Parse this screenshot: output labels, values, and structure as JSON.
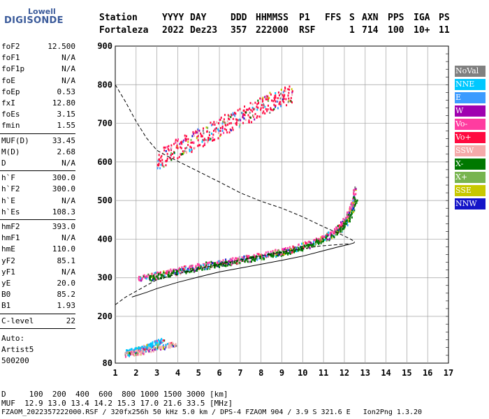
{
  "logo": {
    "line1": "Lowell",
    "line2": "DIGISONDE"
  },
  "header": {
    "row1": [
      "Station",
      "YYYY",
      "DAY",
      "DDD",
      "HHMMSS",
      "P1",
      "FFS",
      "S",
      "AXN",
      "PPS",
      "IGA",
      "PS"
    ],
    "row2": [
      "Fortaleza",
      "2022",
      "Dez23",
      "357",
      "222000",
      "RSF",
      "1",
      "714",
      "100",
      "10+",
      "11"
    ]
  },
  "params_group1": [
    {
      "key": "foF2",
      "value": "12.500"
    },
    {
      "key": "foF1",
      "value": "N/A"
    },
    {
      "key": "foF1p",
      "value": "N/A"
    },
    {
      "key": "foE",
      "value": "N/A"
    },
    {
      "key": "foEp",
      "value": "0.53"
    },
    {
      "key": "fxI",
      "value": "12.80"
    },
    {
      "key": "foEs",
      "value": "3.15"
    },
    {
      "key": "fmin",
      "value": "1.55"
    }
  ],
  "params_group2": [
    {
      "key": "MUF(D)",
      "value": "33.45"
    },
    {
      "key": "M(D)",
      "value": "2.68"
    },
    {
      "key": "D",
      "value": "N/A"
    }
  ],
  "params_group3": [
    {
      "key": "h`F",
      "value": "300.0"
    },
    {
      "key": "h`F2",
      "value": "300.0"
    },
    {
      "key": "h`E",
      "value": "N/A"
    },
    {
      "key": "h`Es",
      "value": "108.3"
    }
  ],
  "params_group4": [
    {
      "key": "hmF2",
      "value": "393.0"
    },
    {
      "key": "hmF1",
      "value": "N/A"
    },
    {
      "key": "hmE",
      "value": "110.0"
    },
    {
      "key": "yF2",
      "value": "85.1"
    },
    {
      "key": "yF1",
      "value": "N/A"
    },
    {
      "key": "yE",
      "value": "20.0"
    },
    {
      "key": "B0",
      "value": "85.2"
    },
    {
      "key": "B1",
      "value": "1.93"
    }
  ],
  "clevel": {
    "key": "C-level",
    "value": "22"
  },
  "autoscaling": {
    "line1": "Auto:",
    "line2": "Artist5",
    "line3": "500200"
  },
  "legend": [
    {
      "label": "NoVal",
      "color": "#808080"
    },
    {
      "label": "NNE",
      "color": "#00c8ff"
    },
    {
      "label": "E",
      "color": "#3c9bff"
    },
    {
      "label": "W",
      "color": "#a000b0"
    },
    {
      "label": "Vo-",
      "color": "#ff3ca0"
    },
    {
      "label": "Vo+",
      "color": "#ff0a40"
    },
    {
      "label": "SSW",
      "color": "#f5aaaa"
    },
    {
      "label": "X-",
      "color": "#007800"
    },
    {
      "label": "X+",
      "color": "#78b450"
    },
    {
      "label": "SSE",
      "color": "#c8c800"
    },
    {
      "label": "NNW",
      "color": "#1414c8"
    }
  ],
  "chart_data": {
    "type": "scatter",
    "title": "",
    "xlabel": "",
    "ylabel": "",
    "xlim": [
      1,
      17
    ],
    "ylim": [
      80,
      900
    ],
    "x_ticks": [
      1,
      2,
      3,
      4,
      5,
      6,
      7,
      8,
      9,
      10,
      11,
      12,
      13,
      14,
      15,
      16,
      17
    ],
    "y_ticks": [
      80,
      200,
      300,
      400,
      500,
      600,
      700,
      800,
      900
    ],
    "grid": true,
    "legend_position": "right",
    "series": [
      {
        "name": "Vo-",
        "kind": "echo-trace",
        "color": "#ff3ca0",
        "points": [
          [
            2.1,
            300
          ],
          [
            2.5,
            304
          ],
          [
            3,
            310
          ],
          [
            3.5,
            316
          ],
          [
            4,
            322
          ],
          [
            4.5,
            327
          ],
          [
            5,
            332
          ],
          [
            5.5,
            337
          ],
          [
            6,
            341
          ],
          [
            6.5,
            346
          ],
          [
            7,
            351
          ],
          [
            7.5,
            356
          ],
          [
            8,
            361
          ],
          [
            8.5,
            366
          ],
          [
            9,
            372
          ],
          [
            9.5,
            379
          ],
          [
            10,
            386
          ],
          [
            10.5,
            395
          ],
          [
            11,
            407
          ],
          [
            11.5,
            423
          ],
          [
            11.8,
            436
          ],
          [
            12,
            452
          ],
          [
            12.2,
            470
          ],
          [
            12.35,
            490
          ],
          [
            12.45,
            510
          ],
          [
            12.5,
            540
          ]
        ]
      },
      {
        "name": "X-",
        "kind": "echo-trace",
        "color": "#007800",
        "points": [
          [
            2.6,
            300
          ],
          [
            3,
            305
          ],
          [
            3.5,
            311
          ],
          [
            4,
            317
          ],
          [
            4.5,
            322
          ],
          [
            5,
            327
          ],
          [
            5.5,
            332
          ],
          [
            6,
            337
          ],
          [
            6.5,
            341
          ],
          [
            7,
            346
          ],
          [
            7.5,
            351
          ],
          [
            8,
            355
          ],
          [
            8.5,
            360
          ],
          [
            9,
            366
          ],
          [
            9.5,
            372
          ],
          [
            10,
            380
          ],
          [
            10.5,
            389
          ],
          [
            11,
            400
          ],
          [
            11.5,
            414
          ],
          [
            11.8,
            426
          ],
          [
            12,
            438
          ],
          [
            12.2,
            455
          ],
          [
            12.4,
            480
          ],
          [
            12.55,
            510
          ]
        ]
      },
      {
        "name": "Vo+",
        "kind": "echo-trace",
        "color": "#ff0a40",
        "points": [
          [
            3,
            600
          ],
          [
            3.5,
            622
          ],
          [
            4,
            638
          ],
          [
            4.5,
            650
          ],
          [
            5,
            662
          ],
          [
            5.5,
            676
          ],
          [
            6,
            692
          ],
          [
            6.5,
            706
          ],
          [
            7,
            718
          ],
          [
            7.5,
            730
          ],
          [
            8,
            745
          ],
          [
            8.5,
            758
          ],
          [
            9,
            772
          ],
          [
            9.5,
            780
          ]
        ]
      },
      {
        "name": "NNE",
        "kind": "echo-trace",
        "color": "#00c8ff",
        "points": [
          [
            1.5,
            110
          ],
          [
            1.8,
            113
          ],
          [
            2.1,
            117
          ],
          [
            2.4,
            122
          ],
          [
            2.7,
            128
          ],
          [
            3,
            135
          ],
          [
            3.3,
            140
          ]
        ]
      },
      {
        "name": "SSW",
        "kind": "echo-trace",
        "color": "#f5aaaa",
        "points": [
          [
            1.5,
            105
          ],
          [
            1.9,
            108
          ],
          [
            2.3,
            112
          ],
          [
            2.8,
            118
          ],
          [
            3.4,
            125
          ],
          [
            3.9,
            132
          ]
        ]
      }
    ],
    "profile_curve": {
      "kind": "true-height",
      "style": "solid",
      "points": [
        [
          1.8,
          250
        ],
        [
          2.5,
          262
        ],
        [
          3,
          272
        ],
        [
          4,
          288
        ],
        [
          5,
          302
        ],
        [
          6,
          315
        ],
        [
          7,
          325
        ],
        [
          8,
          335
        ],
        [
          9,
          345
        ],
        [
          10,
          356
        ],
        [
          11,
          370
        ],
        [
          11.8,
          381
        ],
        [
          12.2,
          386
        ],
        [
          12.45,
          390
        ],
        [
          12.5,
          393
        ]
      ]
    },
    "muf_curve": {
      "kind": "MUF",
      "style": "dashed",
      "points": [
        [
          1,
          230
        ],
        [
          1.5,
          250
        ],
        [
          2,
          265
        ],
        [
          2.5,
          280
        ],
        [
          3,
          295
        ],
        [
          4,
          310
        ],
        [
          5,
          323
        ],
        [
          6,
          335
        ],
        [
          7,
          346
        ],
        [
          8,
          357
        ],
        [
          9,
          366
        ],
        [
          10,
          375
        ],
        [
          10.8,
          382
        ],
        [
          11.5,
          385
        ],
        [
          12,
          387
        ],
        [
          12.3,
          388
        ]
      ]
    },
    "muf_curve_upper": {
      "kind": "MUF",
      "style": "dashed",
      "points": [
        [
          1,
          800
        ],
        [
          1.5,
          755
        ],
        [
          2,
          705
        ],
        [
          2.5,
          662
        ],
        [
          3,
          630
        ],
        [
          3.5,
          615
        ],
        [
          4,
          602
        ],
        [
          5,
          575
        ],
        [
          6,
          548
        ],
        [
          7,
          520
        ],
        [
          8,
          498
        ],
        [
          9,
          480
        ],
        [
          10,
          458
        ],
        [
          11,
          432
        ],
        [
          11.8,
          413
        ],
        [
          12.3,
          400
        ],
        [
          12.5,
          393
        ]
      ]
    }
  },
  "bottom": {
    "line1": "D     100  200  400  600  800 1000 1500 3000 [km]",
    "line2": "MUF  12.9 13.0 13.4 14.2 15.3 17.0 21.6 33.5 [MHz]",
    "line3": "FZAOM_2022357222000.RSF / 320fx256h 50 kHz 5.0 km / DPS-4 FZAOM 904 / 3.9 S 321.6 E   Ion2Png 1.3.20"
  }
}
